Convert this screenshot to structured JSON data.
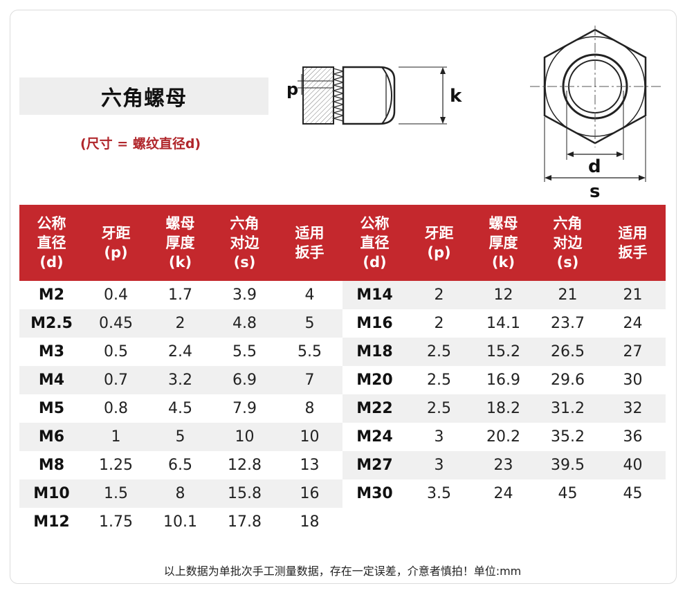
{
  "title": "六角螺母",
  "subtitle": "(尺寸 = 螺纹直径d)",
  "diagram_labels": {
    "p": "p",
    "k": "k",
    "d": "d",
    "s": "s"
  },
  "table": {
    "headers": [
      "公称\n直径\n(d)",
      "牙距\n(p)",
      "螺母\n厚度\n(k)",
      "六角\n对边\n(s)",
      "适用\n扳手"
    ],
    "left_rows": [
      [
        "M2",
        "0.4",
        "1.7",
        "3.9",
        "4"
      ],
      [
        "M2.5",
        "0.45",
        "2",
        "4.8",
        "5"
      ],
      [
        "M3",
        "0.5",
        "2.4",
        "5.5",
        "5.5"
      ],
      [
        "M4",
        "0.7",
        "3.2",
        "6.9",
        "7"
      ],
      [
        "M5",
        "0.8",
        "4.5",
        "7.9",
        "8"
      ],
      [
        "M6",
        "1",
        "5",
        "10",
        "10"
      ],
      [
        "M8",
        "1.25",
        "6.5",
        "12.8",
        "13"
      ],
      [
        "M10",
        "1.5",
        "8",
        "15.8",
        "16"
      ],
      [
        "M12",
        "1.75",
        "10.1",
        "17.8",
        "18"
      ]
    ],
    "right_rows": [
      [
        "M14",
        "2",
        "12",
        "21",
        "21"
      ],
      [
        "M16",
        "2",
        "14.1",
        "23.7",
        "24"
      ],
      [
        "M18",
        "2.5",
        "15.2",
        "26.5",
        "27"
      ],
      [
        "M20",
        "2.5",
        "16.9",
        "29.6",
        "30"
      ],
      [
        "M22",
        "2.5",
        "18.2",
        "31.2",
        "32"
      ],
      [
        "M24",
        "3",
        "20.2",
        "35.2",
        "36"
      ],
      [
        "M27",
        "3",
        "23",
        "39.5",
        "40"
      ],
      [
        "M30",
        "3.5",
        "24",
        "45",
        "45"
      ]
    ]
  },
  "footer": "以上数据为单批次手工测量数据，存在一定误差，介意者慎拍！单位:mm",
  "colors": {
    "header_bg": "#c4282d",
    "accent_text": "#b0262b",
    "row_shade": "#f0f0f0"
  }
}
